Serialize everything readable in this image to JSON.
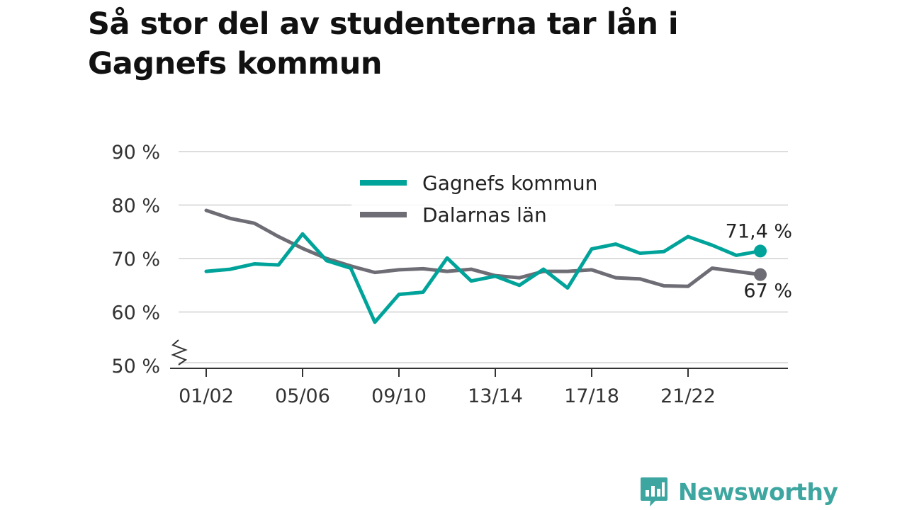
{
  "title": "Så stor del av studenterna tar lån i Gagnefs kommun",
  "brand": {
    "name": "Newsworthy",
    "icon": "bar-chart-speech-icon"
  },
  "colors": {
    "gagnef": "#00a39a",
    "dalarna": "#6e6d75",
    "grid": "#dddddd",
    "axis": "#333333"
  },
  "chart_data": {
    "type": "line",
    "title": "Så stor del av studenterna tar lån i Gagnefs kommun",
    "xlabel": "",
    "ylabel": "",
    "x": [
      "01/02",
      "02/03",
      "03/04",
      "04/05",
      "05/06",
      "06/07",
      "07/08",
      "08/09",
      "09/10",
      "10/11",
      "11/12",
      "12/13",
      "13/14",
      "14/15",
      "15/16",
      "16/17",
      "17/18",
      "18/19",
      "19/20",
      "20/21",
      "21/22",
      "22/23",
      "23/24",
      "24/25"
    ],
    "x_tick_labels": [
      "01/02",
      "05/06",
      "09/10",
      "13/14",
      "17/18",
      "21/22"
    ],
    "y_tick_labels": [
      "50 %",
      "60 %",
      "70 %",
      "80 %",
      "90 %"
    ],
    "y_ticks": [
      50,
      60,
      70,
      80,
      90
    ],
    "ylim": [
      50,
      90
    ],
    "axis_break": true,
    "grid": true,
    "legend_position": "top-center",
    "series": [
      {
        "name": "Gagnefs kommun",
        "color": "#00a39a",
        "values": [
          67.6,
          68.0,
          69.0,
          68.8,
          74.6,
          69.6,
          68.2,
          58.1,
          63.3,
          63.7,
          70.1,
          65.8,
          66.7,
          65.0,
          68.0,
          64.5,
          71.8,
          72.7,
          71.0,
          71.3,
          74.1,
          72.5,
          70.6,
          71.4
        ],
        "end_label": "71,4 %"
      },
      {
        "name": "Dalarnas län",
        "color": "#6e6d75",
        "values": [
          79.0,
          77.5,
          76.6,
          74.1,
          71.9,
          70.0,
          68.6,
          67.4,
          67.9,
          68.1,
          67.6,
          68.0,
          66.8,
          66.4,
          67.6,
          67.6,
          67.9,
          66.4,
          66.2,
          64.9,
          64.8,
          68.2,
          67.6,
          67.0
        ],
        "end_label": "67 %"
      }
    ]
  }
}
